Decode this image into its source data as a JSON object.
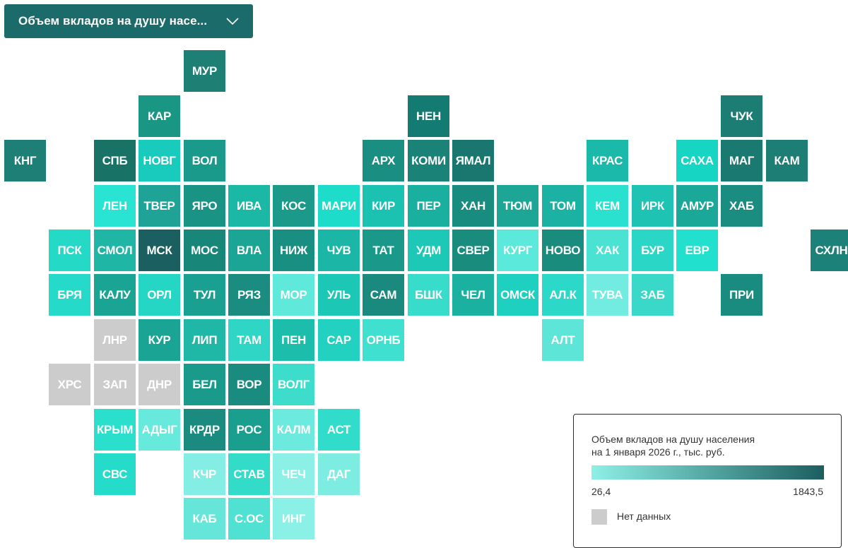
{
  "dropdown": {
    "label": "Объем вкладов на душу насе...",
    "icon": "chevron-down-icon"
  },
  "colors": {
    "scale_min": "#8df0e6",
    "scale_max": "#1c5e5f",
    "no_data": "#cccccc",
    "accent": "#1c6b6b"
  },
  "legend": {
    "title_line1": "Объем вкладов на душу населения",
    "title_line2": "на 1 января 2026 г., тыс. руб.",
    "min": "26,4",
    "max": "1843,5",
    "no_data_label": "Нет данных"
  },
  "regions": [
    {
      "label": "МУР",
      "row": 1,
      "col": 4,
      "color": "#1e8075"
    },
    {
      "label": "КАР",
      "row": 2,
      "col": 3,
      "color": "#1a9684"
    },
    {
      "label": "НЕН",
      "row": 2,
      "col": 9,
      "color": "#147b72"
    },
    {
      "label": "ЧУК",
      "row": 2,
      "col": 16,
      "color": "#1b7d73"
    },
    {
      "label": "КНГ",
      "row": 3,
      "col": 0,
      "color": "#1e7f76"
    },
    {
      "label": "СПБ",
      "row": 3,
      "col": 2,
      "color": "#197266"
    },
    {
      "label": "НОВГ",
      "row": 3,
      "col": 3,
      "color": "#18cbbd"
    },
    {
      "label": "ВОЛ",
      "row": 3,
      "col": 4,
      "color": "#1a9a8a"
    },
    {
      "label": "АРХ",
      "row": 3,
      "col": 8,
      "color": "#1a8e80"
    },
    {
      "label": "КОМИ",
      "row": 3,
      "col": 9,
      "color": "#1a8277"
    },
    {
      "label": "ЯМАЛ",
      "row": 3,
      "col": 10,
      "color": "#1a7770"
    },
    {
      "label": "КРАС",
      "row": 3,
      "col": 13,
      "color": "#1ab9a9"
    },
    {
      "label": "САХА",
      "row": 3,
      "col": 15,
      "color": "#16d6c3"
    },
    {
      "label": "МАГ",
      "row": 3,
      "col": 16,
      "color": "#1a7a71"
    },
    {
      "label": "КАМ",
      "row": 3,
      "col": 17,
      "color": "#1d7e76"
    },
    {
      "label": "ЛЕН",
      "row": 4,
      "col": 2,
      "color": "#29e4d2"
    },
    {
      "label": "ТВЕР",
      "row": 4,
      "col": 3,
      "color": "#1ea396"
    },
    {
      "label": "ЯРО",
      "row": 4,
      "col": 4,
      "color": "#199384"
    },
    {
      "label": "ИВА",
      "row": 4,
      "col": 5,
      "color": "#1cb8a6"
    },
    {
      "label": "КОС",
      "row": 4,
      "col": 6,
      "color": "#1b9a8a"
    },
    {
      "label": "МАРИ",
      "row": 4,
      "col": 7,
      "color": "#1ddcc9"
    },
    {
      "label": "КИР",
      "row": 4,
      "col": 8,
      "color": "#1bc2b1"
    },
    {
      "label": "ПЕР",
      "row": 4,
      "col": 9,
      "color": "#1ab0a0"
    },
    {
      "label": "ХАН",
      "row": 4,
      "col": 10,
      "color": "#188c7e"
    },
    {
      "label": "ТЮМ",
      "row": 4,
      "col": 11,
      "color": "#1da696"
    },
    {
      "label": "ТОМ",
      "row": 4,
      "col": 12,
      "color": "#1cb2a3"
    },
    {
      "label": "КЕМ",
      "row": 4,
      "col": 13,
      "color": "#2ae0cf"
    },
    {
      "label": "ИРК",
      "row": 4,
      "col": 14,
      "color": "#1ec3b3"
    },
    {
      "label": "АМУР",
      "row": 4,
      "col": 15,
      "color": "#1aa898"
    },
    {
      "label": "ХАБ",
      "row": 4,
      "col": 16,
      "color": "#1b8d80"
    },
    {
      "label": "ПСК",
      "row": 5,
      "col": 1,
      "color": "#25d9c7"
    },
    {
      "label": "СМОЛ",
      "row": 5,
      "col": 2,
      "color": "#1fb6a5"
    },
    {
      "label": "МСК",
      "row": 5,
      "col": 3,
      "color": "#1b5f60"
    },
    {
      "label": "МОС",
      "row": 5,
      "col": 4,
      "color": "#188678"
    },
    {
      "label": "ВЛА",
      "row": 5,
      "col": 5,
      "color": "#1aa594"
    },
    {
      "label": "НИЖ",
      "row": 5,
      "col": 6,
      "color": "#198f81"
    },
    {
      "label": "ЧУВ",
      "row": 5,
      "col": 7,
      "color": "#1cb6a6"
    },
    {
      "label": "ТАТ",
      "row": 5,
      "col": 8,
      "color": "#1a998a"
    },
    {
      "label": "УДМ",
      "row": 5,
      "col": 9,
      "color": "#1dc8b7"
    },
    {
      "label": "СВЕР",
      "row": 5,
      "col": 10,
      "color": "#198c7e"
    },
    {
      "label": "КУРГ",
      "row": 5,
      "col": 11,
      "color": "#5ae9da"
    },
    {
      "label": "НОВО",
      "row": 5,
      "col": 12,
      "color": "#1a8c7e"
    },
    {
      "label": "ХАК",
      "row": 5,
      "col": 13,
      "color": "#49e2d3"
    },
    {
      "label": "БУР",
      "row": 5,
      "col": 14,
      "color": "#2ad7c7"
    },
    {
      "label": "ЕВР",
      "row": 5,
      "col": 15,
      "color": "#22e0ce"
    },
    {
      "label": "СХЛН",
      "row": 5,
      "col": 18,
      "color": "#1c8178"
    },
    {
      "label": "БРЯ",
      "row": 6,
      "col": 1,
      "color": "#25dac8"
    },
    {
      "label": "КАЛУ",
      "row": 6,
      "col": 2,
      "color": "#1aa494"
    },
    {
      "label": "ОРЛ",
      "row": 6,
      "col": 3,
      "color": "#25d6c4"
    },
    {
      "label": "ТУЛ",
      "row": 6,
      "col": 4,
      "color": "#1aa090"
    },
    {
      "label": "РЯЗ",
      "row": 6,
      "col": 5,
      "color": "#1a8d80"
    },
    {
      "label": "МОР",
      "row": 6,
      "col": 6,
      "color": "#5ee9da"
    },
    {
      "label": "УЛЬ",
      "row": 6,
      "col": 7,
      "color": "#1cc7b6"
    },
    {
      "label": "САМ",
      "row": 6,
      "col": 8,
      "color": "#198a7d"
    },
    {
      "label": "БШК",
      "row": 6,
      "col": 9,
      "color": "#37dcca"
    },
    {
      "label": "ЧЕЛ",
      "row": 6,
      "col": 10,
      "color": "#1bb1a1"
    },
    {
      "label": "ОМСК",
      "row": 6,
      "col": 11,
      "color": "#1ed0bf"
    },
    {
      "label": "АЛ.К",
      "row": 6,
      "col": 12,
      "color": "#2cd8c7"
    },
    {
      "label": "ТУВА",
      "row": 6,
      "col": 13,
      "color": "#72ece0"
    },
    {
      "label": "ЗАБ",
      "row": 6,
      "col": 14,
      "color": "#3ad8c8"
    },
    {
      "label": "ПРИ",
      "row": 6,
      "col": 16,
      "color": "#1a8c7f"
    },
    {
      "label": "ЛНР",
      "row": 7,
      "col": 2,
      "color": "#cccccc"
    },
    {
      "label": "КУР",
      "row": 7,
      "col": 3,
      "color": "#1aa494"
    },
    {
      "label": "ЛИП",
      "row": 7,
      "col": 4,
      "color": "#1fb8a7"
    },
    {
      "label": "ТАМ",
      "row": 7,
      "col": 5,
      "color": "#2fd6c5"
    },
    {
      "label": "ПЕН",
      "row": 7,
      "col": 6,
      "color": "#1dbdac"
    },
    {
      "label": "САР",
      "row": 7,
      "col": 7,
      "color": "#22d1bf"
    },
    {
      "label": "ОРНБ",
      "row": 7,
      "col": 8,
      "color": "#40e0d0"
    },
    {
      "label": "АЛТ",
      "row": 7,
      "col": 12,
      "color": "#5de6d8"
    },
    {
      "label": "ХРС",
      "row": 8,
      "col": 1,
      "color": "#cccccc"
    },
    {
      "label": "ЗАП",
      "row": 8,
      "col": 2,
      "color": "#cccccc"
    },
    {
      "label": "ДНР",
      "row": 8,
      "col": 3,
      "color": "#cccccc"
    },
    {
      "label": "БЕЛ",
      "row": 8,
      "col": 4,
      "color": "#1a9a8b"
    },
    {
      "label": "ВОР",
      "row": 8,
      "col": 5,
      "color": "#1a8c7f"
    },
    {
      "label": "ВОЛГ",
      "row": 8,
      "col": 6,
      "color": "#3ddccb"
    },
    {
      "label": "КРЫМ",
      "row": 9,
      "col": 2,
      "color": "#2bdfcd"
    },
    {
      "label": "АДЫГ",
      "row": 9,
      "col": 3,
      "color": "#67e9dc"
    },
    {
      "label": "КРДР",
      "row": 9,
      "col": 4,
      "color": "#1a8b7e"
    },
    {
      "label": "РОС",
      "row": 9,
      "col": 5,
      "color": "#1a9e8e"
    },
    {
      "label": "КАЛМ",
      "row": 9,
      "col": 6,
      "color": "#6deade"
    },
    {
      "label": "АСТ",
      "row": 9,
      "col": 7,
      "color": "#31dcca"
    },
    {
      "label": "СВС",
      "row": 10,
      "col": 2,
      "color": "#25dcca"
    },
    {
      "label": "КЧР",
      "row": 10,
      "col": 4,
      "color": "#84eee4"
    },
    {
      "label": "СТАВ",
      "row": 10,
      "col": 5,
      "color": "#33dbc9"
    },
    {
      "label": "ЧЕЧ",
      "row": 10,
      "col": 6,
      "color": "#8df0e6"
    },
    {
      "label": "ДАГ",
      "row": 10,
      "col": 7,
      "color": "#7dede2"
    },
    {
      "label": "КАБ",
      "row": 11,
      "col": 4,
      "color": "#66e6d8"
    },
    {
      "label": "С.ОС",
      "row": 11,
      "col": 5,
      "color": "#4fe2d2"
    },
    {
      "label": "ИНГ",
      "row": 11,
      "col": 6,
      "color": "#8bf0e6"
    }
  ]
}
